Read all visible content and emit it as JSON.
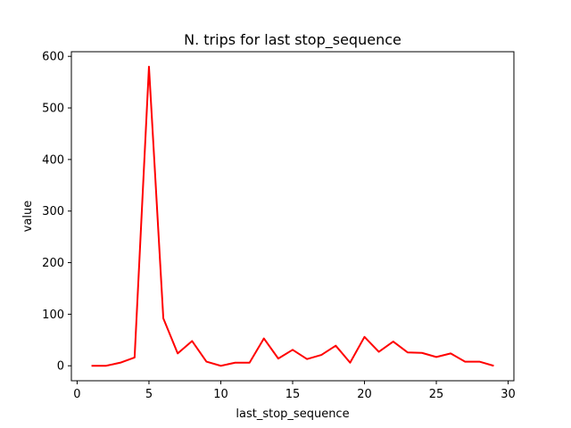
{
  "chart_data": {
    "type": "line",
    "title": "N. trips for last stop_sequence",
    "xlabel": "last_stop_sequence",
    "ylabel": "value",
    "xlim": [
      -0.4,
      30.4
    ],
    "ylim": [
      -29,
      609
    ],
    "xticks": [
      0,
      5,
      10,
      15,
      20,
      25,
      30
    ],
    "yticks": [
      0,
      100,
      200,
      300,
      400,
      500,
      600
    ],
    "grid": false,
    "series": [
      {
        "color": "#ff0000",
        "x": [
          1,
          2,
          3,
          4,
          5,
          6,
          7,
          8,
          9,
          10,
          11,
          12,
          13,
          14,
          15,
          16,
          17,
          18,
          19,
          20,
          21,
          22,
          23,
          24,
          25,
          26,
          27,
          28,
          29
        ],
        "y": [
          0,
          0,
          6,
          16,
          580,
          92,
          24,
          48,
          8,
          0,
          6,
          6,
          53,
          14,
          31,
          13,
          21,
          39,
          6,
          56,
          27,
          47,
          26,
          25,
          17,
          24,
          8,
          8,
          0
        ]
      }
    ]
  }
}
